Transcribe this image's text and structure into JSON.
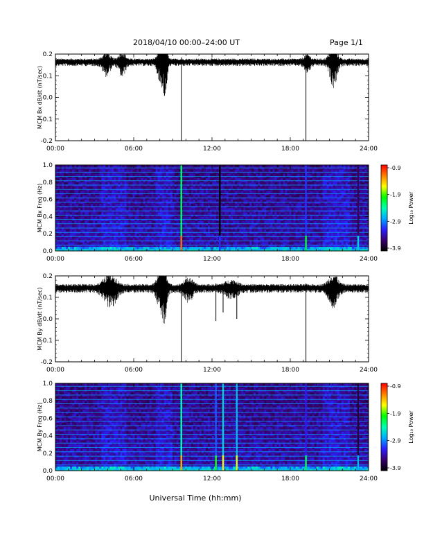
{
  "header": {
    "title": "2018/04/10   00:00–24:00 UT",
    "page": "Page 1/1"
  },
  "xlabel": "Universal Time (hh:mm)",
  "xticks": [
    "00:00",
    "06:00",
    "12:00",
    "18:00",
    "24:00"
  ],
  "colorbar": {
    "label": "Log₁₀ Power",
    "ticks": [
      "-0.9",
      "-1.9",
      "-2.9",
      "-3.9"
    ],
    "range": [
      -3.9,
      -0.9
    ],
    "colormap": [
      "#000000",
      "#3a0070",
      "#2c1fff",
      "#00aaff",
      "#00ffb0",
      "#00ff00",
      "#ffff00",
      "#ff8000",
      "#ff0000"
    ]
  },
  "chart_data": [
    {
      "type": "line",
      "ylabel": "MCM Bx dB/dt (nT/sec)",
      "yticks": [
        "0.2",
        "0.1",
        "0.0",
        "-0.1",
        "-0.2"
      ],
      "ylim": [
        -0.2,
        0.2
      ],
      "xlim": [
        0,
        24
      ],
      "baseline": 0.165,
      "noise": 0.012,
      "bursts": [
        {
          "t": 3.9,
          "w": 0.35,
          "amp": 0.03
        },
        {
          "t": 5.1,
          "w": 0.3,
          "amp": 0.035
        },
        {
          "t": 8.1,
          "w": 0.3,
          "amp": 0.06
        },
        {
          "t": 8.45,
          "w": 0.15,
          "amp": 0.09
        },
        {
          "t": 21.3,
          "w": 0.35,
          "amp": 0.06
        },
        {
          "t": 19.3,
          "w": 0.3,
          "amp": 0.02
        }
      ],
      "spikes": [
        {
          "t": 9.65,
          "min": -0.2
        },
        {
          "t": 19.2,
          "min": -0.2
        },
        {
          "t": 8.3,
          "min": 0.02
        }
      ]
    },
    {
      "type": "heatmap",
      "ylabel": "MCM Bx Freq (Hz)",
      "yticks": [
        "1.0",
        "0.8",
        "0.6",
        "0.4",
        "0.2",
        "0.0"
      ],
      "ylim": [
        0,
        1.0
      ],
      "xlim": [
        0,
        24
      ],
      "zlim": [
        -3.9,
        -0.9
      ],
      "line_freqs": [
        0.0,
        0.05,
        0.1,
        0.15,
        0.2,
        0.25,
        0.3,
        0.35,
        0.4,
        0.45,
        0.5,
        0.55,
        0.6,
        0.65,
        0.7,
        0.75,
        0.8,
        0.85,
        0.9,
        0.95
      ],
      "bright_times": [
        {
          "t": 9.65,
          "level": -1.2
        },
        {
          "t": 19.2,
          "level": -2.1
        },
        {
          "t": 23.2,
          "level": -2.6
        },
        {
          "t": 12.6,
          "level": -3.1
        }
      ],
      "active_periods": [
        [
          3.5,
          5.5
        ],
        [
          7.7,
          9.0
        ],
        [
          20.5,
          22.5
        ]
      ]
    },
    {
      "type": "line",
      "ylabel": "MCM By dB/dt (nT/sec)",
      "yticks": [
        "0.2",
        "0.1",
        "0.0",
        "-0.1",
        "-0.2"
      ],
      "ylim": [
        -0.2,
        0.2
      ],
      "xlim": [
        0,
        24
      ],
      "baseline": 0.145,
      "noise": 0.014,
      "bursts": [
        {
          "t": 4.2,
          "w": 0.6,
          "amp": 0.045
        },
        {
          "t": 8.1,
          "w": 0.35,
          "amp": 0.07
        },
        {
          "t": 8.4,
          "w": 0.2,
          "amp": 0.05
        },
        {
          "t": 10.2,
          "w": 0.4,
          "amp": 0.03
        },
        {
          "t": 21.3,
          "w": 0.45,
          "amp": 0.045
        },
        {
          "t": 13.5,
          "w": 0.6,
          "amp": 0.02
        }
      ],
      "spikes": [
        {
          "t": 9.65,
          "min": -0.2
        },
        {
          "t": 19.2,
          "min": -0.2
        },
        {
          "t": 12.3,
          "min": -0.01
        },
        {
          "t": 12.85,
          "min": 0.03
        },
        {
          "t": 13.9,
          "min": 0.0
        }
      ]
    },
    {
      "type": "heatmap",
      "ylabel": "MCM By Freq (Hz)",
      "yticks": [
        "1.0",
        "0.8",
        "0.6",
        "0.4",
        "0.2",
        "0.0"
      ],
      "ylim": [
        0,
        1.0
      ],
      "xlim": [
        0,
        24
      ],
      "zlim": [
        -3.9,
        -0.9
      ],
      "line_freqs": [
        0.0,
        0.05,
        0.1,
        0.15,
        0.2,
        0.25,
        0.3,
        0.35,
        0.4,
        0.45,
        0.5,
        0.55,
        0.6,
        0.65,
        0.7,
        0.75,
        0.8,
        0.85,
        0.9,
        0.95
      ],
      "bright_times": [
        {
          "t": 9.65,
          "level": -1.4
        },
        {
          "t": 12.3,
          "level": -2.0
        },
        {
          "t": 12.85,
          "level": -1.6
        },
        {
          "t": 13.9,
          "level": -1.7
        },
        {
          "t": 19.2,
          "level": -2.2
        },
        {
          "t": 23.2,
          "level": -2.7
        }
      ],
      "active_periods": [
        [
          3.5,
          5.5
        ],
        [
          7.7,
          9.0
        ],
        [
          20.5,
          22.5
        ]
      ]
    }
  ]
}
